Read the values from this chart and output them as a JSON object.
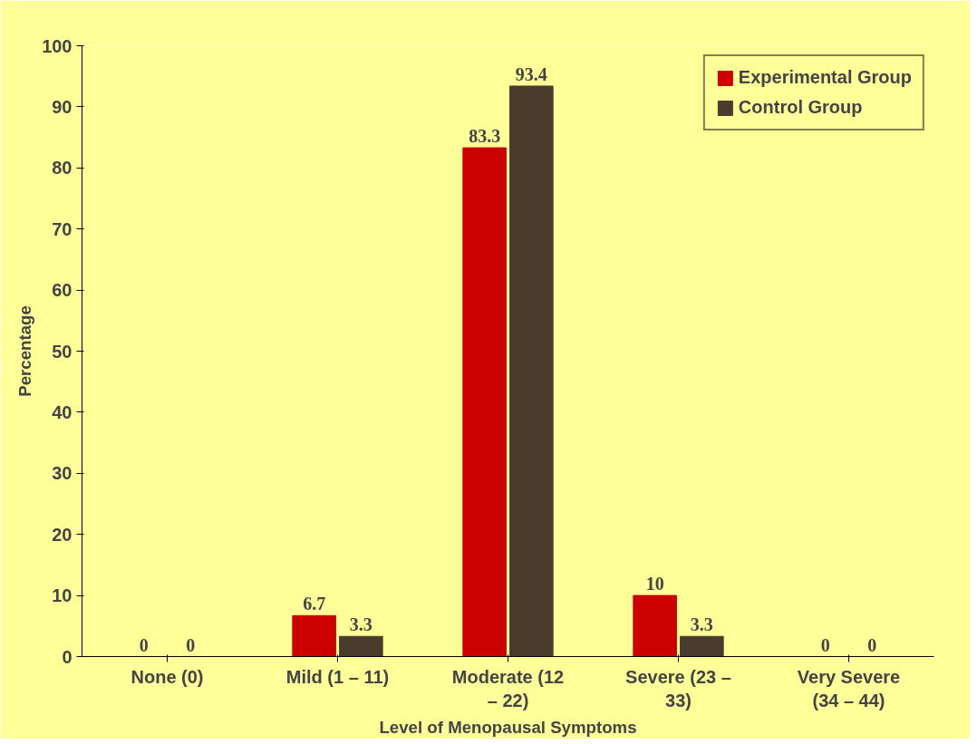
{
  "chart_data": {
    "type": "bar",
    "xlabel": "Level of Menopausal Symptoms",
    "ylabel": "Percentage",
    "categories": [
      "None (0)",
      "Mild (1 – 11)",
      "Moderate (12 – 22)",
      "Severe (23 – 33)",
      "Very Severe (34 – 44)"
    ],
    "series": [
      {
        "name": "Experimental Group",
        "color": "#cc0000",
        "values": [
          0,
          6.7,
          83.3,
          10,
          0
        ]
      },
      {
        "name": "Control Group",
        "color": "#4a3b2c",
        "values": [
          0,
          3.3,
          93.4,
          3.3,
          0
        ]
      }
    ],
    "ylim": [
      0,
      100
    ],
    "yticks": [
      0,
      10,
      20,
      30,
      40,
      50,
      60,
      70,
      80,
      90,
      100
    ],
    "grid": false,
    "legend": "top right",
    "data_labels": true
  }
}
